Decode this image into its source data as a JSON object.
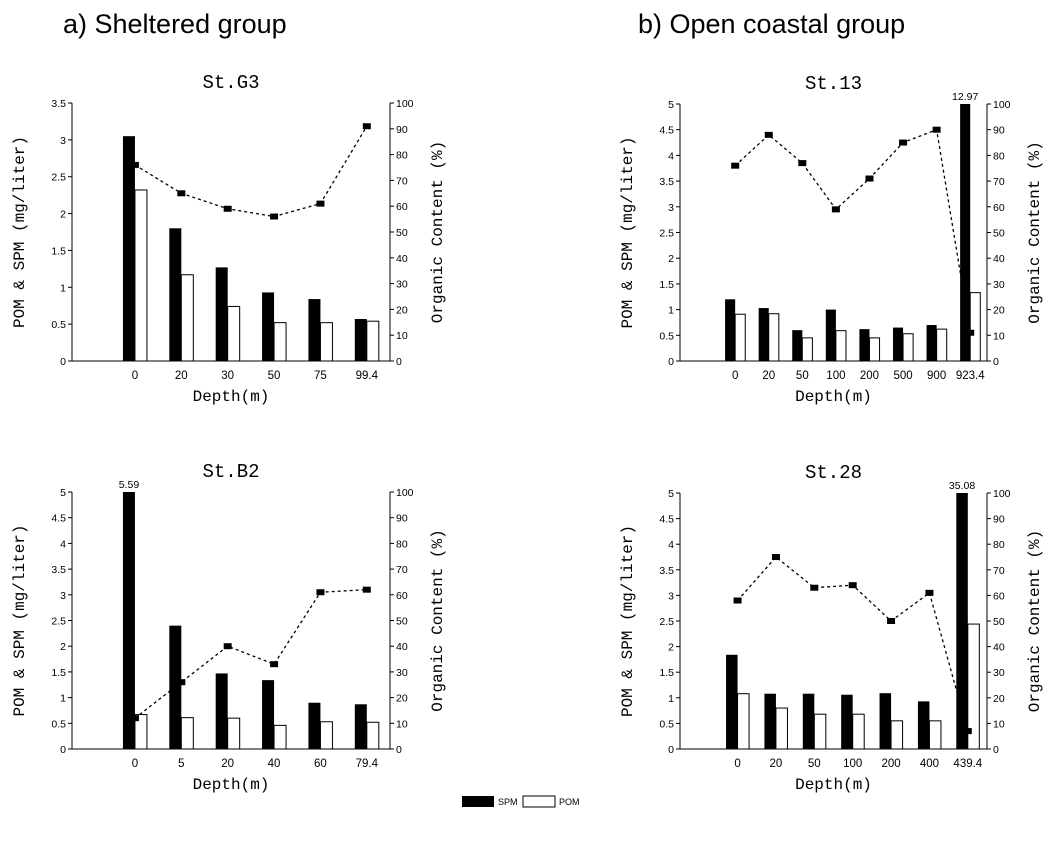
{
  "groups": {
    "a": "a) Sheltered group",
    "b": "b) Open coastal group"
  },
  "legend": {
    "spm": "SPM",
    "pom": "POM"
  },
  "colors": {
    "spm": "#000000",
    "pom": "#ffffff",
    "line": "#000000"
  },
  "chart_data": [
    {
      "type": "bar",
      "title": "St.G3",
      "xlabel": "Depth(m)",
      "ylabel": "POM & SPM (mg/liter)",
      "y2label": "Organic Content (%)",
      "ylim": [
        0,
        3.5
      ],
      "y2lim": [
        0,
        100
      ],
      "yticks": [
        "0",
        "0.5",
        "1",
        "1.5",
        "2",
        "2.5",
        "3",
        "3.5"
      ],
      "y2ticks": [
        "0",
        "10",
        "20",
        "30",
        "40",
        "50",
        "60",
        "70",
        "80",
        "90",
        "100"
      ],
      "categories": [
        "0",
        "20",
        "30",
        "50",
        "75",
        "99.4"
      ],
      "series": [
        {
          "name": "SPM",
          "values": [
            3.05,
            1.8,
            1.27,
            0.93,
            0.84,
            0.57
          ]
        },
        {
          "name": "POM",
          "values": [
            2.32,
            1.17,
            0.74,
            0.52,
            0.52,
            0.54
          ]
        }
      ],
      "organic_content": [
        76,
        65,
        59,
        56,
        61,
        91
      ],
      "annotation": null
    },
    {
      "type": "bar",
      "title": "St.B2",
      "xlabel": "Depth(m)",
      "ylabel": "POM & SPM (mg/liter)",
      "y2label": "Organic Content (%)",
      "ylim": [
        0,
        5
      ],
      "y2lim": [
        0,
        100
      ],
      "yticks": [
        "0",
        "0.5",
        "1",
        "1.5",
        "2",
        "2.5",
        "3",
        "3.5",
        "4",
        "4.5",
        "5"
      ],
      "y2ticks": [
        "0",
        "10",
        "20",
        "30",
        "40",
        "50",
        "60",
        "70",
        "80",
        "90",
        "100"
      ],
      "categories": [
        "0",
        "5",
        "20",
        "40",
        "60",
        "79.4"
      ],
      "series": [
        {
          "name": "SPM",
          "values": [
            5.59,
            2.4,
            1.47,
            1.34,
            0.9,
            0.87
          ]
        },
        {
          "name": "POM",
          "values": [
            0.67,
            0.61,
            0.6,
            0.46,
            0.53,
            0.52
          ]
        }
      ],
      "organic_content": [
        12,
        26,
        40,
        33,
        61,
        62
      ],
      "annotation": "5.59"
    },
    {
      "type": "bar",
      "title": "St.13",
      "xlabel": "Depth(m)",
      "ylabel": "POM & SPM (mg/liter)",
      "y2label": "Organic Content (%)",
      "ylim": [
        0,
        5
      ],
      "y2lim": [
        0,
        100
      ],
      "yticks": [
        "0",
        "0.5",
        "1",
        "1.5",
        "2",
        "2.5",
        "3",
        "3.5",
        "4",
        "4.5",
        "5"
      ],
      "y2ticks": [
        "0",
        "10",
        "20",
        "30",
        "40",
        "50",
        "60",
        "70",
        "80",
        "90",
        "100"
      ],
      "categories": [
        "0",
        "20",
        "50",
        "100",
        "200",
        "500",
        "900",
        "923.4"
      ],
      "series": [
        {
          "name": "SPM",
          "values": [
            1.2,
            1.03,
            0.6,
            1.0,
            0.62,
            0.65,
            0.7,
            12.97
          ]
        },
        {
          "name": "POM",
          "values": [
            0.91,
            0.92,
            0.45,
            0.59,
            0.45,
            0.53,
            0.62,
            1.33
          ]
        }
      ],
      "organic_content": [
        76,
        88,
        77,
        59,
        71,
        85,
        90,
        11
      ],
      "annotation": "12.97"
    },
    {
      "type": "bar",
      "title": "St.28",
      "xlabel": "Depth(m)",
      "ylabel": "POM & SPM (mg/liter)",
      "y2label": "Organic Content (%)",
      "ylim": [
        0,
        5
      ],
      "y2lim": [
        0,
        100
      ],
      "yticks": [
        "0",
        "0.5",
        "1",
        "1.5",
        "2",
        "2.5",
        "3",
        "3.5",
        "4",
        "4.5",
        "5"
      ],
      "y2ticks": [
        "0",
        "10",
        "20",
        "30",
        "40",
        "50",
        "60",
        "70",
        "80",
        "90",
        "100"
      ],
      "categories": [
        "0",
        "20",
        "50",
        "100",
        "200",
        "400",
        "439.4"
      ],
      "series": [
        {
          "name": "SPM",
          "values": [
            1.84,
            1.08,
            1.08,
            1.06,
            1.09,
            0.93,
            35.08
          ]
        },
        {
          "name": "POM",
          "values": [
            1.08,
            0.8,
            0.68,
            0.68,
            0.55,
            0.55,
            2.44
          ]
        }
      ],
      "organic_content": [
        58,
        75,
        63,
        64,
        50,
        61,
        7
      ],
      "annotation": "35.08"
    }
  ]
}
